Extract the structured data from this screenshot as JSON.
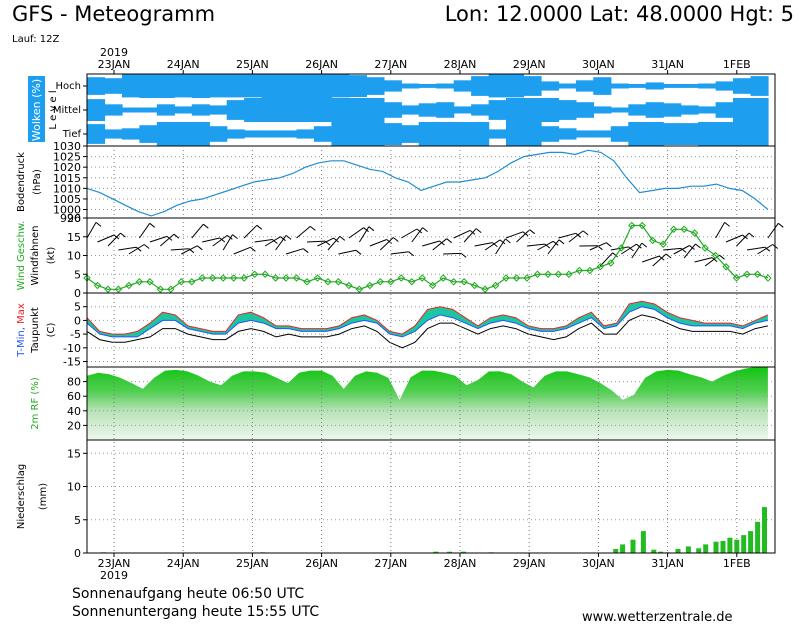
{
  "header": {
    "title": "GFS - Meteogramm",
    "coords": "Lon: 12.0000 Lat: 48.0000 Hgt: 5",
    "run": "Lauf: 12Z"
  },
  "year_label": "2019",
  "dates": [
    "23JAN",
    "24JAN",
    "25JAN",
    "26JAN",
    "27JAN",
    "28JAN",
    "29JAN",
    "30JAN",
    "31JAN",
    "1FEB"
  ],
  "footer": {
    "sunrise": "Sonnenaufgang heute 06:50 UTC",
    "sunset": "Sonnenuntergang heute 15:55 UTC",
    "site": "www.wetterzentrale.de"
  },
  "colors": {
    "cloud_bg": "#1e9eef",
    "pressure": "#1e8fd0",
    "wind": "#22aa22",
    "tmin": "#2255ff",
    "tmax": "#ee2222",
    "dewpoint": "#000000",
    "precip": "#22bb22"
  },
  "chart_data": [
    {
      "type": "area",
      "panel": "clouds",
      "ylabel": "Wolken (%)",
      "ylabel2": "Level",
      "levels": [
        "Hoch",
        "Mittel",
        "Tief"
      ],
      "x_days": 9.9,
      "series": [
        {
          "name": "Hoch",
          "values": [
            70,
            60,
            95,
            100,
            100,
            95,
            100,
            95,
            95,
            95,
            100,
            100,
            100,
            100,
            95,
            90,
            70,
            40,
            10,
            5,
            10,
            40,
            80,
            95,
            95,
            80,
            30,
            10,
            40,
            70,
            10,
            5,
            20,
            5,
            5,
            10,
            30,
            60,
            80
          ]
        },
        {
          "name": "Mittel",
          "values": [
            90,
            40,
            10,
            10,
            40,
            20,
            40,
            30,
            80,
            100,
            100,
            100,
            100,
            100,
            100,
            100,
            100,
            60,
            30,
            50,
            60,
            20,
            40,
            80,
            100,
            100,
            100,
            80,
            60,
            20,
            10,
            40,
            60,
            50,
            30,
            20,
            60,
            100,
            100
          ]
        },
        {
          "name": "Tief",
          "values": [
            80,
            30,
            40,
            70,
            100,
            100,
            100,
            60,
            30,
            20,
            20,
            20,
            30,
            60,
            100,
            100,
            100,
            90,
            70,
            100,
            100,
            100,
            100,
            30,
            100,
            100,
            60,
            40,
            20,
            20,
            60,
            100,
            100,
            90,
            90,
            100,
            100,
            100,
            100
          ]
        }
      ]
    },
    {
      "type": "line",
      "panel": "pressure",
      "ylabel": "Bodendruck",
      "yunit": "(hPa)",
      "ylim": [
        996,
        1030
      ],
      "yticks": [
        996,
        1000,
        1005,
        1010,
        1015,
        1020,
        1025,
        1030
      ],
      "x_days": 9.9,
      "series": [
        {
          "name": "Bodendruck",
          "values": [
            1010,
            1008,
            1005,
            1002,
            999,
            997,
            999,
            1002,
            1004,
            1005,
            1007,
            1009,
            1011,
            1013,
            1014,
            1015,
            1017,
            1020,
            1022,
            1023,
            1023,
            1021,
            1019,
            1018,
            1015,
            1013,
            1009,
            1011,
            1013,
            1013,
            1014,
            1015,
            1018,
            1022,
            1025,
            1026,
            1027,
            1027,
            1026,
            1028,
            1027,
            1023,
            1015,
            1008,
            1009,
            1010,
            1010,
            1011,
            1011,
            1012,
            1010,
            1009,
            1005,
            1000
          ]
        }
      ]
    },
    {
      "type": "line",
      "panel": "wind",
      "ylabel": "Wind Geschw.",
      "ylabel2": "Windfahnen",
      "yunit": "(kt)",
      "ylim": [
        0,
        20
      ],
      "yticks": [
        0,
        5,
        10,
        15,
        20
      ],
      "x_days": 9.9,
      "series": [
        {
          "name": "Wind Geschw.",
          "values": [
            4,
            2,
            1,
            1,
            2,
            3,
            3,
            1,
            1,
            3,
            3,
            4,
            4,
            4,
            4,
            4,
            5,
            5,
            4,
            4,
            4,
            3,
            4,
            3,
            3,
            2,
            1,
            2,
            3,
            3,
            4,
            3,
            4,
            2,
            4,
            3,
            3,
            2,
            1,
            2,
            4,
            4,
            4,
            5,
            5,
            5,
            5,
            6,
            6,
            7,
            8,
            12,
            18,
            18,
            14,
            13,
            17,
            17,
            16,
            12,
            10,
            7,
            4,
            5,
            5,
            4
          ]
        }
      ]
    },
    {
      "type": "line",
      "panel": "temperature",
      "ylabel": "T-Min, Max",
      "ylabel2": "Taupunkt",
      "yunit": "(C)",
      "ylim": [
        -17,
        10
      ],
      "yticks": [
        -15,
        -10,
        -5,
        0,
        5
      ],
      "x_days": 9.9,
      "series": [
        {
          "name": "T-Min",
          "values": [
            -1,
            -5,
            -6,
            -6,
            -6,
            -3,
            0,
            0,
            -3,
            -4,
            -5,
            -5,
            -1,
            0,
            -1,
            -3,
            -3,
            -4,
            -4,
            -4,
            -3,
            -1,
            0,
            -1,
            -5,
            -6,
            -4,
            0,
            2,
            1,
            -1,
            -3,
            -1,
            0,
            -1,
            -3,
            -4,
            -4,
            -3,
            -1,
            1,
            -3,
            -2,
            3,
            5,
            4,
            1,
            -1,
            -2,
            -2,
            -2,
            -2,
            -3,
            -1,
            0
          ]
        },
        {
          "name": "T-Max",
          "values": [
            1,
            -4,
            -5,
            -5,
            -4,
            -1,
            3,
            2,
            -2,
            -3,
            -4,
            -4,
            2,
            3,
            1,
            -2,
            -2,
            -3,
            -3,
            -3,
            -2,
            1,
            2,
            0,
            -4,
            -5,
            -2,
            4,
            5,
            4,
            1,
            -2,
            1,
            2,
            1,
            -2,
            -3,
            -3,
            -2,
            1,
            3,
            -2,
            -1,
            6,
            7,
            6,
            3,
            1,
            0,
            -1,
            -1,
            -1,
            -2,
            0,
            2
          ]
        },
        {
          "name": "Taupunkt",
          "values": [
            -4,
            -7,
            -8,
            -8,
            -7,
            -6,
            -3,
            -3,
            -5,
            -6,
            -7,
            -7,
            -4,
            -3,
            -4,
            -6,
            -5,
            -6,
            -6,
            -6,
            -5,
            -3,
            -2,
            -4,
            -8,
            -10,
            -8,
            -3,
            -1,
            -1,
            -3,
            -5,
            -3,
            -2,
            -3,
            -5,
            -6,
            -7,
            -6,
            -3,
            -1,
            -5,
            -5,
            0,
            2,
            1,
            -1,
            -3,
            -4,
            -4,
            -4,
            -4,
            -5,
            -3,
            -2
          ]
        }
      ]
    },
    {
      "type": "area",
      "panel": "humidity",
      "ylabel": "2m RF (%)",
      "ylim": [
        0,
        100
      ],
      "yticks": [
        20,
        40,
        60,
        80
      ],
      "x_days": 9.9,
      "series": [
        {
          "name": "2m RF",
          "values": [
            88,
            92,
            90,
            85,
            78,
            70,
            85,
            95,
            96,
            94,
            88,
            80,
            75,
            88,
            94,
            94,
            92,
            85,
            78,
            92,
            95,
            95,
            88,
            70,
            88,
            94,
            92,
            85,
            55,
            86,
            95,
            95,
            92,
            88,
            75,
            82,
            94,
            94,
            90,
            80,
            72,
            88,
            94,
            94,
            90,
            86,
            78,
            68,
            55,
            62,
            85,
            94,
            96,
            95,
            90,
            86,
            80,
            88,
            94,
            98,
            100,
            100
          ]
        }
      ]
    },
    {
      "type": "bar",
      "panel": "precip",
      "ylabel": "Niederschlag",
      "yunit": "(mm)",
      "ylim": [
        0,
        17
      ],
      "yticks": [
        0,
        5,
        10,
        15
      ],
      "x_days": 9.9,
      "bars": [
        {
          "x": 0.3,
          "v": 0.1
        },
        {
          "x": 2.6,
          "v": 0.1
        },
        {
          "x": 5.1,
          "v": 0.2
        },
        {
          "x": 5.3,
          "v": 0.2
        },
        {
          "x": 5.5,
          "v": 0.2
        },
        {
          "x": 5.9,
          "v": 0.1
        },
        {
          "x": 7.7,
          "v": 0.6
        },
        {
          "x": 7.8,
          "v": 1.3
        },
        {
          "x": 7.95,
          "v": 2.0
        },
        {
          "x": 8.1,
          "v": 3.3
        },
        {
          "x": 8.25,
          "v": 0.5
        },
        {
          "x": 8.35,
          "v": 0.2
        },
        {
          "x": 8.45,
          "v": 0.1
        },
        {
          "x": 8.6,
          "v": 0.6
        },
        {
          "x": 8.75,
          "v": 1.0
        },
        {
          "x": 8.9,
          "v": 0.7
        },
        {
          "x": 9.0,
          "v": 1.3
        },
        {
          "x": 9.15,
          "v": 1.7
        },
        {
          "x": 9.25,
          "v": 1.8
        },
        {
          "x": 9.35,
          "v": 2.3
        },
        {
          "x": 9.45,
          "v": 2.0
        },
        {
          "x": 9.55,
          "v": 2.7
        },
        {
          "x": 9.65,
          "v": 3.3
        },
        {
          "x": 9.75,
          "v": 4.7
        },
        {
          "x": 9.85,
          "v": 6.9
        }
      ]
    }
  ]
}
